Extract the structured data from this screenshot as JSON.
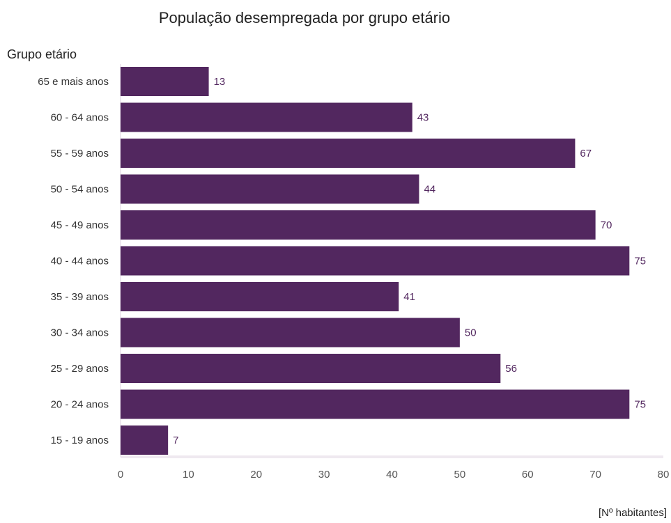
{
  "chart_data": {
    "type": "bar",
    "orientation": "horizontal",
    "title": "População desempregada por grupo etário",
    "ylabel": "Grupo etário",
    "xlabel": "[Nº habitantes]",
    "categories": [
      "65 e mais anos",
      "60 - 64 anos",
      "55 - 59 anos",
      "50 - 54 anos",
      "45 - 49 anos",
      "40 - 44 anos",
      "35 - 39 anos",
      "30 - 34 anos",
      "25 - 29 anos",
      "20 - 24 anos",
      "15 - 19 anos"
    ],
    "values": [
      13,
      43,
      67,
      44,
      70,
      75,
      41,
      50,
      56,
      75,
      7
    ],
    "xlim": [
      0,
      80
    ],
    "xticks": [
      "0",
      "10",
      "20",
      "30",
      "40",
      "50",
      "60",
      "70",
      "80"
    ],
    "grid": false,
    "legend": "none",
    "colors": {
      "bar": "#52275f",
      "data_label": "#52275f",
      "axis_line": "#efe9f0",
      "text": "#333333",
      "tick_text": "#555555"
    }
  }
}
